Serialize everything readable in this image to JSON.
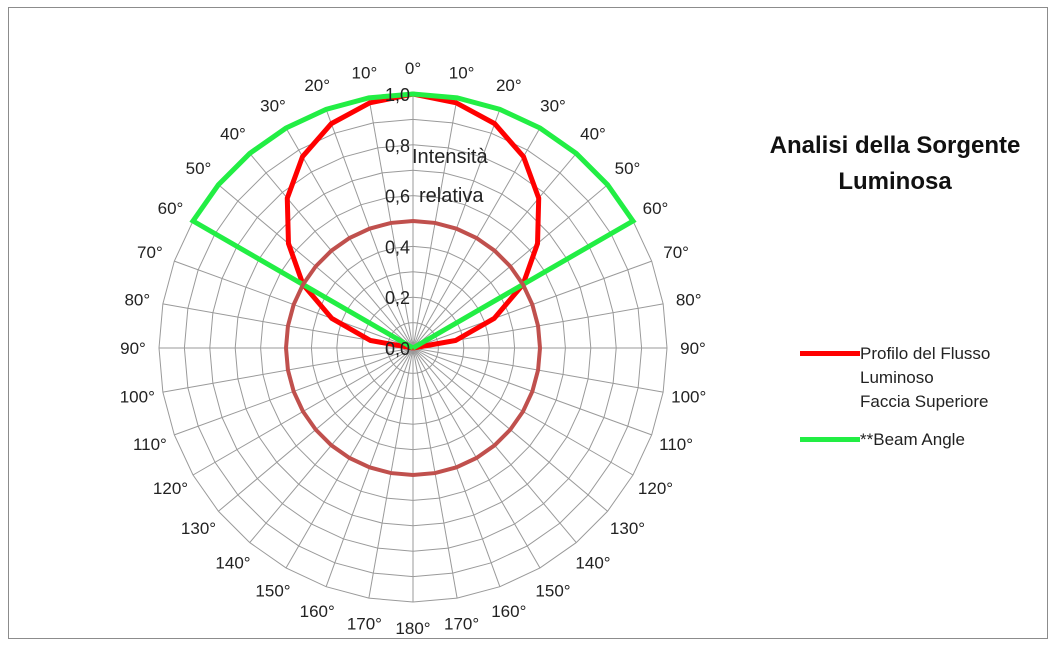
{
  "chart_data": {
    "type": "polar",
    "title": "Analisi della Sorgente Luminosa",
    "ylabel": "Intensità relativa",
    "rlim": [
      0,
      1.0
    ],
    "radial_ticks": [
      "0,0",
      "0,2",
      "0,4",
      "0,6",
      "0,8",
      "1,0"
    ],
    "angle_ticks_right": [
      "0°",
      "10°",
      "20°",
      "30°",
      "40°",
      "50°",
      "60°",
      "70°",
      "80°",
      "90°",
      "100°",
      "110°",
      "120°",
      "130°",
      "140°",
      "150°",
      "160°",
      "170°",
      "180°"
    ],
    "angle_ticks_left": [
      "10°",
      "20°",
      "30°",
      "40°",
      "50°",
      "60°",
      "70°",
      "80°",
      "90°",
      "100°",
      "110°",
      "120°",
      "130°",
      "140°",
      "150°",
      "160°",
      "170°"
    ],
    "legend_position": "right",
    "series": [
      {
        "name": "Profilo del Flusso Luminoso Faccia Superiore",
        "color": "#ff0000",
        "angles": [
          -90,
          -80,
          -70,
          -60,
          -50,
          -40,
          -30,
          -20,
          -10,
          0,
          10,
          20,
          30,
          40,
          50,
          60,
          70,
          80,
          90
        ],
        "values": [
          0.0,
          0.17,
          0.34,
          0.5,
          0.64,
          0.77,
          0.87,
          0.94,
          0.98,
          1.0,
          0.98,
          0.94,
          0.87,
          0.77,
          0.64,
          0.5,
          0.34,
          0.17,
          0.0
        ]
      },
      {
        "name": "**Beam Angle",
        "color": "#22ee44",
        "angles": [
          -60,
          -50,
          -40,
          -30,
          -20,
          -10,
          0,
          10,
          20,
          30,
          40,
          50,
          60
        ],
        "values": [
          1.0,
          1.0,
          1.0,
          1.0,
          1.0,
          1.0,
          1.0,
          1.0,
          1.0,
          1.0,
          1.0,
          1.0,
          1.0
        ],
        "closed_to_origin": true
      },
      {
        "name": "",
        "color": "#c0504d",
        "angles": "full",
        "value": 0.5
      }
    ]
  },
  "legend": {
    "items": [
      {
        "line1": "Profilo del Flusso",
        "line2": "Luminoso",
        "line3": "Faccia Superiore",
        "color": "#ff0000"
      },
      {
        "line1": "**Beam Angle",
        "color": "#22ee44"
      }
    ]
  },
  "title": {
    "line1": "Analisi della Sorgente",
    "line2": "Luminosa"
  },
  "axis_label": {
    "line1": "Intensità",
    "line2": "relativa"
  }
}
